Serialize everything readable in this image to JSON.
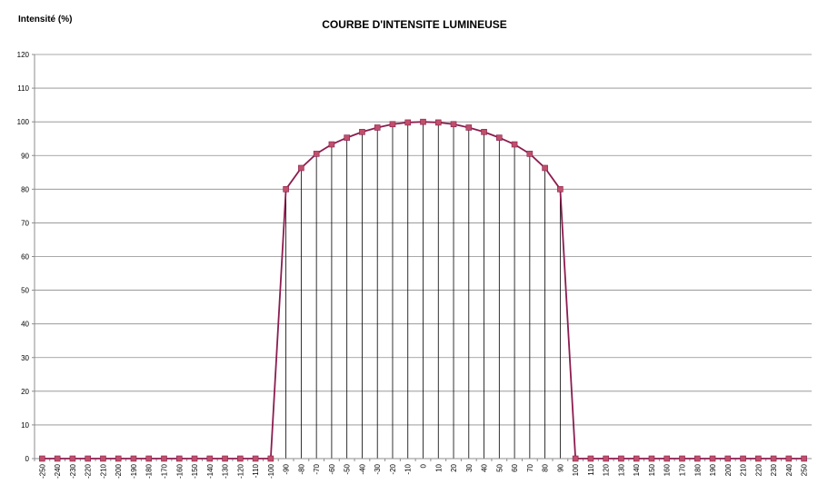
{
  "chart_data": {
    "type": "line",
    "title": "COURBE D'INTENSITE LUMINEUSE",
    "y_label": "Intensité (%)",
    "categories": [
      -250,
      -240,
      -230,
      -220,
      -210,
      -200,
      -190,
      -180,
      -170,
      -160,
      -150,
      -140,
      -130,
      -120,
      -110,
      -100,
      -90,
      -80,
      -70,
      -60,
      -50,
      -40,
      -30,
      -20,
      -10,
      0,
      10,
      20,
      30,
      40,
      50,
      60,
      70,
      80,
      90,
      100,
      110,
      120,
      130,
      140,
      150,
      160,
      170,
      180,
      190,
      200,
      210,
      220,
      230,
      240,
      250
    ],
    "series": [
      {
        "name": "Intensité",
        "color": "#8b1d4f",
        "marker_color": "#c0506a",
        "values": [
          0,
          0,
          0,
          0,
          0,
          0,
          0,
          0,
          0,
          0,
          0,
          0,
          0,
          0,
          0,
          0,
          80,
          86.3,
          90.5,
          93.3,
          95.3,
          97,
          98.3,
          99.3,
          99.8,
          100,
          99.8,
          99.3,
          98.3,
          97,
          95.3,
          93.3,
          90.5,
          86.3,
          80,
          0,
          0,
          0,
          0,
          0,
          0,
          0,
          0,
          0,
          0,
          0,
          0,
          0,
          0,
          0,
          0
        ]
      }
    ],
    "ylim": [
      0,
      120
    ],
    "yticks": [
      0,
      10,
      20,
      30,
      40,
      50,
      60,
      70,
      80,
      90,
      100,
      110,
      120
    ],
    "grid": true,
    "drop_lines": true
  }
}
